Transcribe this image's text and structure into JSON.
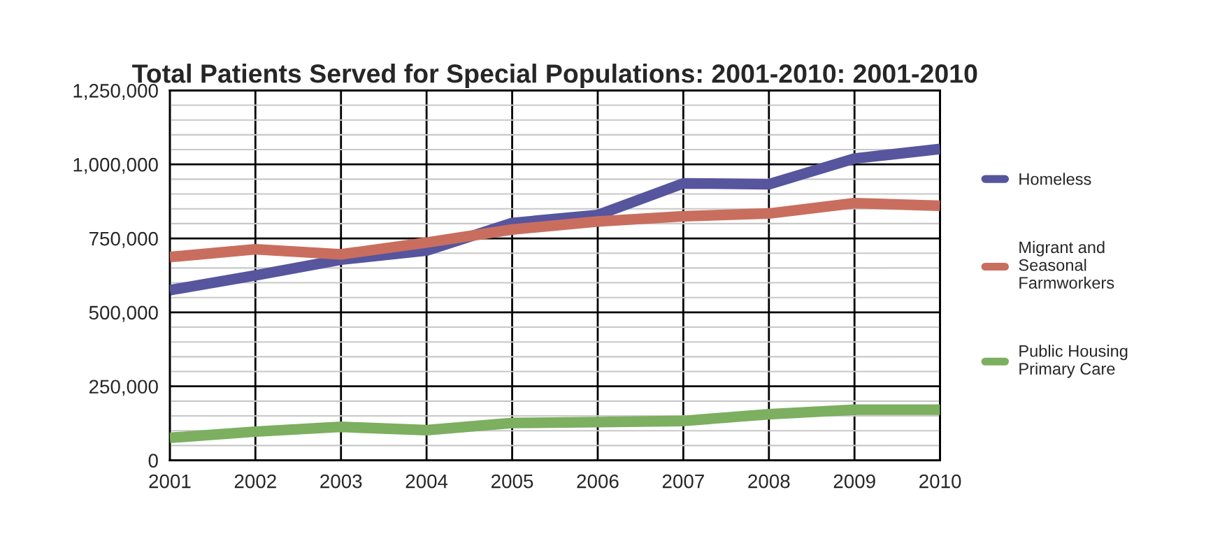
{
  "chart_data": {
    "type": "line",
    "title": "Total Patients Served for Special Populations: 2001-2010: 2001-2010",
    "x": [
      2001,
      2002,
      2003,
      2004,
      2005,
      2006,
      2007,
      2008,
      2009,
      2010
    ],
    "xlim": [
      2001,
      2010
    ],
    "xticks": [
      2001,
      2002,
      2003,
      2004,
      2005,
      2006,
      2007,
      2008,
      2009,
      2010
    ],
    "ylim": [
      0,
      1250000
    ],
    "yticks": [
      {
        "value": 0,
        "label": "0"
      },
      {
        "value": 250000,
        "label": "250,000"
      },
      {
        "value": 500000,
        "label": "500,000"
      },
      {
        "value": 750000,
        "label": "750,000"
      },
      {
        "value": 1000000,
        "label": "1,000,000"
      },
      {
        "value": 1250000,
        "label": "1,250,000"
      }
    ],
    "grid": true,
    "legend": "right",
    "marker": "none",
    "line_style": "solid",
    "series": [
      {
        "name": "Homeless",
        "color": "#56559e",
        "values": [
          575000,
          625000,
          678000,
          709000,
          802000,
          829000,
          936000,
          933000,
          1020000,
          1052000
        ]
      },
      {
        "name": "Migrant and Seasonal Farmworkers",
        "color": "#c96e5e",
        "values": [
          687000,
          713000,
          696000,
          736000,
          780000,
          807000,
          825000,
          834000,
          869000,
          860000
        ]
      },
      {
        "name": "Public Housing Primary Care",
        "color": "#7caf5f",
        "values": [
          76000,
          97000,
          113000,
          102000,
          126000,
          129000,
          133000,
          156000,
          171000,
          171000
        ]
      }
    ]
  }
}
